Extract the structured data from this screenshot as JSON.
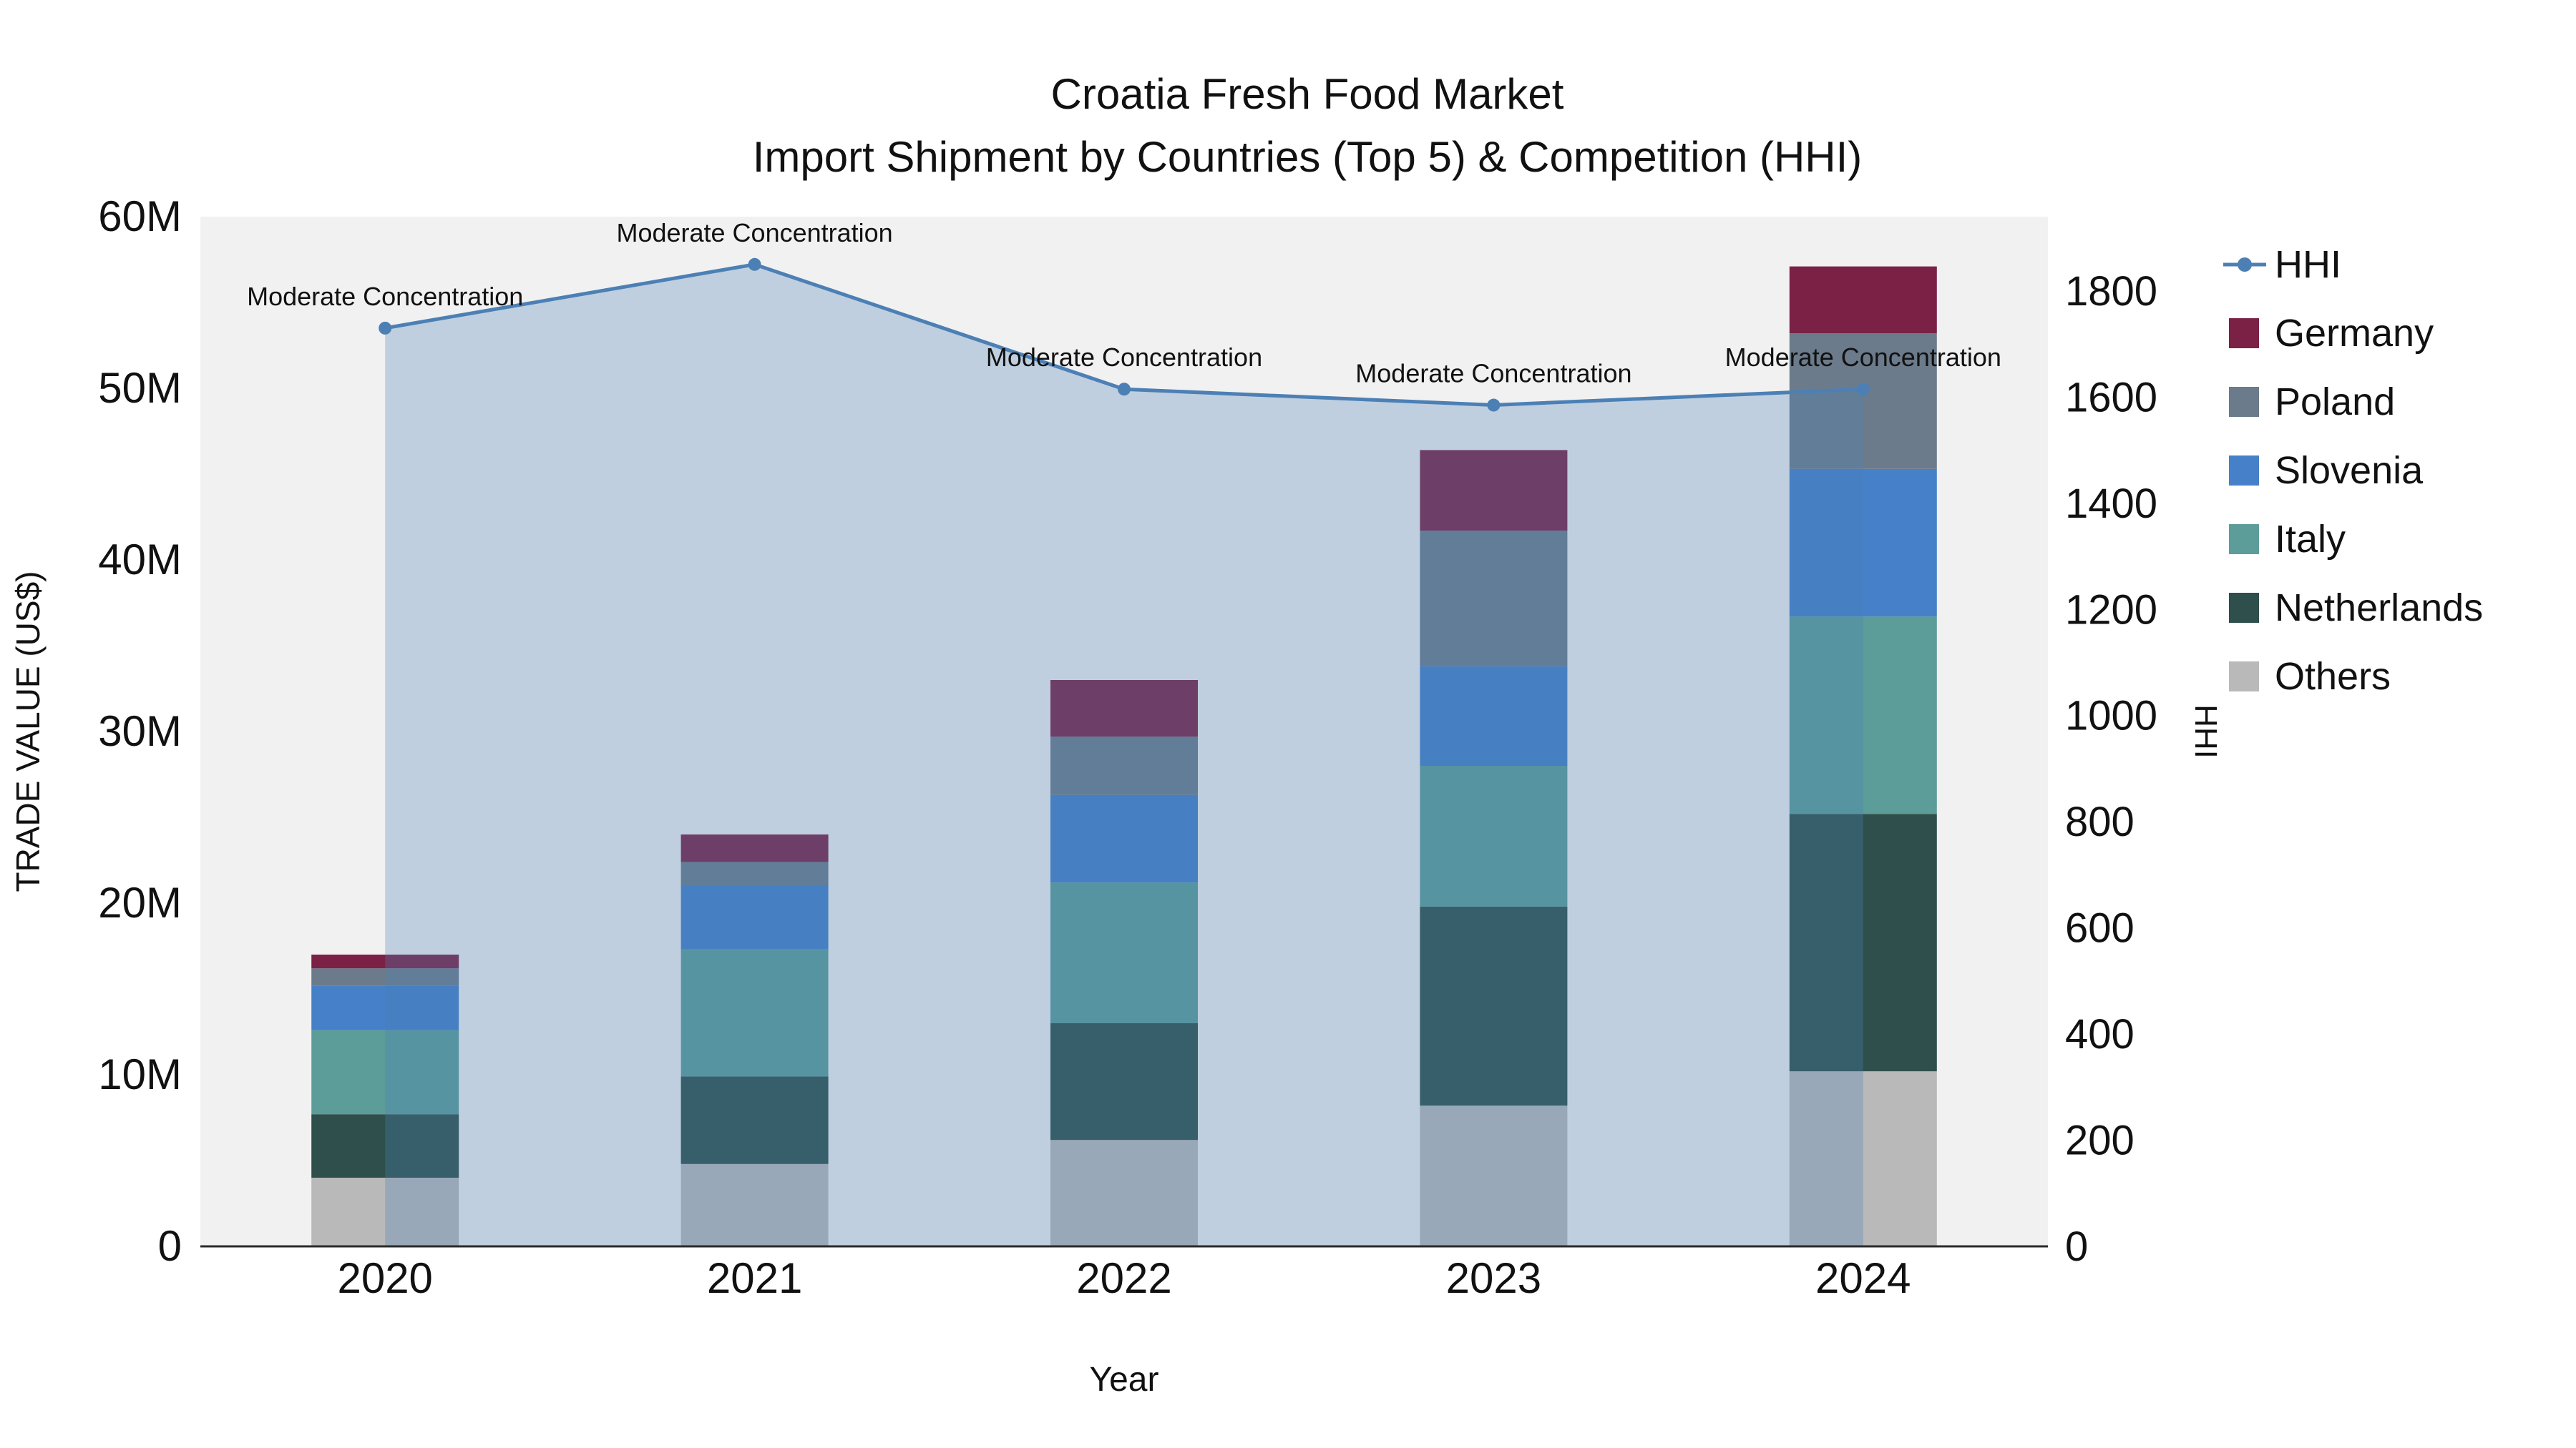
{
  "title": {
    "line1": "Croatia Fresh Food Market",
    "line2": "Import Shipment by Countries (Top 5) & Competition (HHI)"
  },
  "chart_data": {
    "type": "bar",
    "stacked": true,
    "categories": [
      "2020",
      "2021",
      "2022",
      "2023",
      "2024"
    ],
    "xlabel": "Year",
    "ylabel_left": "TRADE VALUE (US$)",
    "ylabel_right": "HHI",
    "y_left_ticks": [
      "0",
      "10M",
      "20M",
      "30M",
      "40M",
      "50M",
      "60M"
    ],
    "y_left_range_millions": [
      0,
      60
    ],
    "y_right_range": [
      0,
      1940
    ],
    "y_right_tick_step": 200,
    "y_right_max_tick": 1800,
    "plot_bg": "#f1f1f1",
    "series": [
      {
        "name": "Others",
        "color": "#b9b9b9",
        "values": [
          4.0,
          4.8,
          6.2,
          8.2,
          10.2
        ]
      },
      {
        "name": "Netherlands",
        "color": "#2e4f4b",
        "values": [
          3.7,
          5.1,
          6.8,
          11.6,
          15.0
        ]
      },
      {
        "name": "Italy",
        "color": "#5c9d99",
        "values": [
          4.9,
          7.4,
          8.2,
          8.2,
          11.5
        ]
      },
      {
        "name": "Slovenia",
        "color": "#4680c8",
        "values": [
          2.6,
          3.7,
          5.1,
          5.8,
          8.6
        ]
      },
      {
        "name": "Poland",
        "color": "#6c7b8b",
        "values": [
          1.0,
          1.4,
          3.4,
          7.9,
          7.9
        ]
      },
      {
        "name": "Germany",
        "color": "#7b2145",
        "values": [
          0.8,
          1.6,
          3.3,
          4.7,
          3.9
        ]
      }
    ],
    "line_series": {
      "name": "HHI",
      "color": "#4c80b5",
      "fill_color": "rgba(76,128,181,0.30)",
      "values": [
        1730,
        1850,
        1615,
        1585,
        1615
      ]
    },
    "annotations": [
      "Moderate Concentration",
      "Moderate Concentration",
      "Moderate Concentration",
      "Moderate Concentration",
      "Moderate Concentration"
    ],
    "legend": [
      {
        "label": "HHI",
        "type": "line",
        "color": "#4c80b5"
      },
      {
        "label": "Germany",
        "type": "box",
        "color": "#7b2145"
      },
      {
        "label": "Poland",
        "type": "box",
        "color": "#6c7b8b"
      },
      {
        "label": "Slovenia",
        "type": "box",
        "color": "#4680c8"
      },
      {
        "label": "Italy",
        "type": "box",
        "color": "#5c9d99"
      },
      {
        "label": "Netherlands",
        "type": "box",
        "color": "#2e4f4b"
      },
      {
        "label": "Others",
        "type": "box",
        "color": "#b9b9b9"
      }
    ]
  }
}
